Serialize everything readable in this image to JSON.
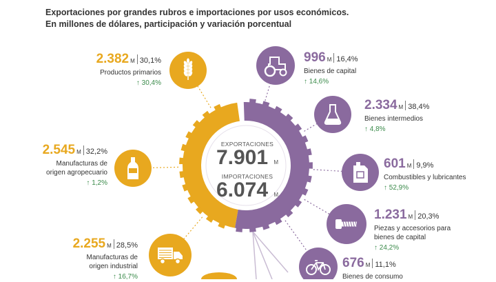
{
  "title_line1": "Exportaciones por grandes rubros e importaciones por usos económicos.",
  "title_line2": "En millones de dólares, participación y variación porcentual",
  "unit": "M",
  "center": {
    "exp_label": "EXPORTACIONES",
    "exp_value": "7.901",
    "imp_label": "IMPORTACIONES",
    "imp_value": "6.074",
    "ring_exp": "EXPORTACIONES",
    "ring_imp": "IMPORTACIONES"
  },
  "colors": {
    "exports": "#e8a81f",
    "imports": "#8a6a9e",
    "increase": "#3a8a4a"
  },
  "chart_data": {
    "type": "infographic",
    "exports": [
      {
        "name": "Productos primarios",
        "value": "2.382",
        "share": "30,1%",
        "change": "30,4%",
        "direction": "up",
        "icon": "wheat-icon"
      },
      {
        "name": "Manufacturas de origen agropecuario",
        "name_lines": [
          "Manufacturas de",
          "origen agropecuario"
        ],
        "value": "2.545",
        "share": "32,2%",
        "change": "1,2%",
        "direction": "up",
        "icon": "bottle-icon"
      },
      {
        "name": "Manufacturas de origen industrial",
        "name_lines": [
          "Manufacturas de",
          "origen industrial"
        ],
        "value": "2.255",
        "share": "28,5%",
        "change": "16,7%",
        "direction": "up",
        "icon": "truck-icon"
      }
    ],
    "imports": [
      {
        "name": "Bienes de capital",
        "value": "996",
        "share": "16,4%",
        "change": "14,6%",
        "direction": "up",
        "icon": "tractor-icon"
      },
      {
        "name": "Bienes intermedios",
        "value": "2.334",
        "share": "38,4%",
        "change": "4,8%",
        "direction": "up",
        "icon": "flask-icon"
      },
      {
        "name": "Combustibles y lubricantes",
        "value": "601",
        "share": "9,9%",
        "change": "52,9%",
        "direction": "up",
        "icon": "jerrycan-icon"
      },
      {
        "name": "Piezas y accesorios para bienes de capital",
        "name_lines": [
          "Piezas y accesorios para",
          "bienes de capital"
        ],
        "value": "1.231",
        "share": "20,3%",
        "change": "24,2%",
        "direction": "up",
        "icon": "bolt-icon"
      },
      {
        "name": "Bienes de consumo",
        "value": "676",
        "share": "11,1%",
        "icon": "bicycle-icon"
      }
    ],
    "totals": {
      "exports": "7.901",
      "imports": "6.074"
    }
  }
}
